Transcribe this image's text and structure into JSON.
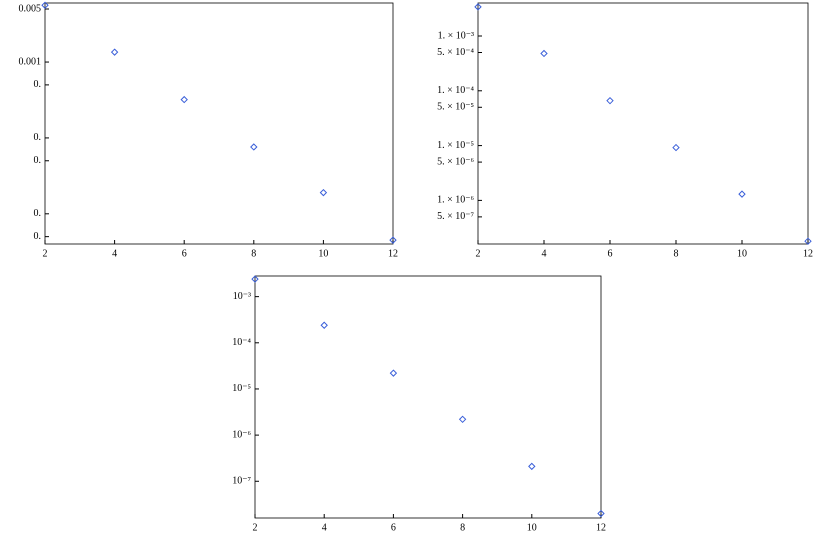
{
  "chart_data": [
    {
      "type": "scatter",
      "log_y": true,
      "color": "#3a5fd9",
      "marker": "diamond",
      "x": [
        2,
        4,
        6,
        8,
        10,
        12
      ],
      "values": [
        0.0056,
        0.00135,
        0.00032,
        7.6e-05,
        1.9e-05,
        4.5e-06
      ],
      "xlim": [
        2,
        12
      ],
      "xticks": [
        2,
        4,
        6,
        8,
        10,
        12
      ],
      "ylim": [
        4e-06,
        0.006
      ],
      "yticks": [
        {
          "value": 0.005,
          "label": "0.005"
        },
        {
          "value": 0.001,
          "label": "0.001"
        },
        {
          "value": 0.0005,
          "label": "0."
        },
        {
          "value": 0.0001,
          "label": "0."
        },
        {
          "value": 5e-05,
          "label": "0."
        },
        {
          "value": 1e-05,
          "label": "0."
        },
        {
          "value": 5e-06,
          "label": "0."
        }
      ]
    },
    {
      "type": "scatter",
      "log_y": true,
      "color": "#3a5fd9",
      "marker": "diamond",
      "x": [
        2,
        4,
        6,
        8,
        10,
        12
      ],
      "values": [
        0.0034,
        0.00048,
        6.6e-05,
        9.2e-06,
        1.3e-06,
        1.8e-07
      ],
      "xlim": [
        2,
        12
      ],
      "xticks": [
        2,
        4,
        6,
        8,
        10,
        12
      ],
      "ylim": [
        1.6e-07,
        0.004
      ],
      "yticks": [
        {
          "value": 0.001,
          "label": "1. × 10⁻³"
        },
        {
          "value": 0.0005,
          "label": "5. × 10⁻⁴"
        },
        {
          "value": 0.0001,
          "label": "1. × 10⁻⁴"
        },
        {
          "value": 5e-05,
          "label": "5. × 10⁻⁵"
        },
        {
          "value": 1e-05,
          "label": "1. × 10⁻⁵"
        },
        {
          "value": 5e-06,
          "label": "5. × 10⁻⁶"
        },
        {
          "value": 1e-06,
          "label": "1. × 10⁻⁶"
        },
        {
          "value": 5e-07,
          "label": "5. × 10⁻⁷"
        }
      ]
    },
    {
      "type": "scatter",
      "log_y": true,
      "color": "#3a5fd9",
      "marker": "diamond",
      "x": [
        2,
        4,
        6,
        8,
        10,
        12
      ],
      "values": [
        0.0024,
        0.00024,
        2.2e-05,
        2.2e-06,
        2.1e-07,
        2e-08
      ],
      "xlim": [
        2,
        12
      ],
      "xticks": [
        2,
        4,
        6,
        8,
        10,
        12
      ],
      "ylim": [
        1.6e-08,
        0.0028
      ],
      "yticks": [
        {
          "value": 0.001,
          "label": "10⁻³"
        },
        {
          "value": 0.0001,
          "label": "10⁻⁴"
        },
        {
          "value": 1e-05,
          "label": "10⁻⁵"
        },
        {
          "value": 1e-06,
          "label": "10⁻⁶"
        },
        {
          "value": 1e-07,
          "label": "10⁻⁷"
        }
      ]
    }
  ]
}
